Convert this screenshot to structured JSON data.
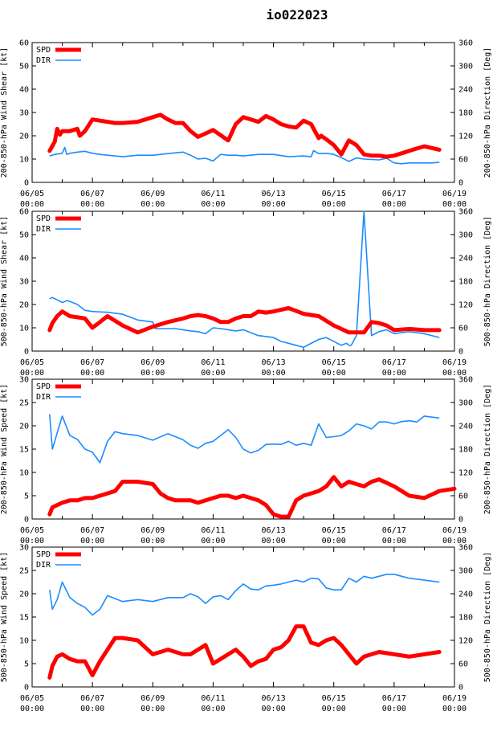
{
  "title": "io022023",
  "colors": {
    "spd": "#ff0000",
    "dir": "#1a8cff",
    "title": "#0000ee",
    "axis": "#000000",
    "grid": "#999999"
  },
  "chart_data": [
    {
      "type": "line",
      "ylabel": "200-850-hPa Wind Shear [kt]",
      "y2label": "200-850-hPa Direction [Deg]",
      "ylim": [
        0,
        60
      ],
      "yticks": [
        0,
        10,
        20,
        30,
        40,
        50,
        60
      ],
      "y2lim": [
        0,
        360
      ],
      "y2ticks": [
        0,
        60,
        120,
        180,
        240,
        300,
        360
      ],
      "xlim": [
        0,
        14
      ],
      "xtick_labels": [
        [
          "06/05",
          "00:00"
        ],
        [
          "06/07",
          "00:00"
        ],
        [
          "06/09",
          "00:00"
        ],
        [
          "06/11",
          "00:00"
        ],
        [
          "06/13",
          "00:00"
        ],
        [
          "06/15",
          "00:00"
        ],
        [
          "06/17",
          "00:00"
        ],
        [
          "06/19",
          "00:00"
        ]
      ],
      "legend": [
        "SPD",
        "DIR"
      ],
      "series": [
        {
          "name": "SPD",
          "x": [
            0.58,
            0.75,
            0.83,
            0.92,
            1.0,
            1.25,
            1.5,
            1.58,
            1.75,
            2.0,
            2.25,
            2.5,
            2.75,
            3.0,
            3.5,
            4.0,
            4.25,
            4.5,
            4.75,
            5.0,
            5.25,
            5.5,
            5.75,
            6.0,
            6.5,
            6.75,
            7.0,
            7.25,
            7.5,
            7.75,
            8.0,
            8.25,
            8.5,
            8.75,
            9.0,
            9.25,
            9.5,
            9.58,
            9.75,
            10.0,
            10.25,
            10.5,
            10.75,
            11.0,
            11.25,
            11.5,
            11.75,
            12.0,
            12.25,
            12.5,
            12.75,
            13.0,
            13.5
          ],
          "values": [
            13.5,
            17.5,
            23,
            20.5,
            22,
            22,
            23,
            20,
            22,
            27,
            26.5,
            26,
            25.5,
            25.5,
            26,
            28,
            29,
            27,
            25.5,
            25.5,
            22,
            19.5,
            21,
            22.5,
            18,
            25,
            28,
            27,
            26,
            28.5,
            27,
            25,
            24,
            23.5,
            26.5,
            25,
            19,
            20,
            18.5,
            16,
            12,
            18,
            16,
            12,
            11.5,
            11.5,
            11,
            11.5,
            12.5,
            13.5,
            14.5,
            15.5,
            14
          ]
        },
        {
          "name": "DIR",
          "x": [
            0.58,
            0.75,
            1.0,
            1.08,
            1.15,
            1.25,
            1.5,
            1.75,
            2.0,
            2.25,
            2.5,
            3.0,
            3.5,
            4.0,
            4.5,
            5.0,
            5.25,
            5.5,
            5.75,
            6.0,
            6.25,
            6.5,
            6.75,
            7.0,
            7.5,
            8.0,
            8.5,
            9.0,
            9.25,
            9.33,
            9.5,
            9.75,
            10.0,
            10.25,
            10.5,
            10.75,
            11.0,
            11.5,
            11.75,
            12.0,
            12.25,
            12.5,
            12.75,
            13.0,
            13.25,
            13.5
          ],
          "values": [
            68,
            72,
            75,
            90,
            72,
            75,
            78,
            80,
            75,
            72,
            70,
            66,
            70,
            70,
            74,
            78,
            70,
            60,
            62,
            55,
            72,
            70,
            70,
            68,
            72,
            72,
            66,
            68,
            66,
            82,
            74,
            75,
            72,
            64,
            54,
            63,
            60,
            58,
            62,
            50,
            48,
            50,
            50,
            50,
            50,
            52
          ]
        }
      ]
    },
    {
      "type": "line",
      "ylabel": "500-850-hPa Wind Shear [kt]",
      "y2label": "500-850-hPa Direction [Deg]",
      "ylim": [
        0,
        60
      ],
      "yticks": [
        0,
        10,
        20,
        30,
        40,
        50,
        60
      ],
      "y2lim": [
        0,
        360
      ],
      "y2ticks": [
        0,
        60,
        120,
        180,
        240,
        300,
        360
      ],
      "xlim": [
        0,
        14
      ],
      "xtick_labels": [
        [
          "06/05",
          "00:00"
        ],
        [
          "06/07",
          "00:00"
        ],
        [
          "06/09",
          "00:00"
        ],
        [
          "06/11",
          "00:00"
        ],
        [
          "06/13",
          "00:00"
        ],
        [
          "06/15",
          "00:00"
        ],
        [
          "06/17",
          "00:00"
        ],
        [
          "06/19",
          "00:00"
        ]
      ],
      "legend": [
        "SPD",
        "DIR"
      ],
      "series": [
        {
          "name": "SPD",
          "x": [
            0.58,
            0.67,
            0.83,
            1.0,
            1.25,
            1.5,
            1.75,
            2.0,
            2.25,
            2.5,
            2.75,
            3.0,
            3.5,
            4.0,
            4.5,
            5.0,
            5.25,
            5.5,
            5.75,
            6.0,
            6.25,
            6.5,
            6.75,
            7.0,
            7.25,
            7.5,
            7.75,
            8.0,
            8.5,
            9.0,
            9.5,
            9.75,
            10.0,
            10.25,
            10.5,
            10.75,
            11.0,
            11.25,
            11.5,
            11.75,
            12.0,
            12.5,
            13.0,
            13.5
          ],
          "values": [
            9,
            12,
            15,
            17,
            15,
            14.5,
            14,
            10,
            12.5,
            15,
            13,
            11,
            8,
            10.5,
            12.5,
            14,
            15,
            15.5,
            15,
            14,
            12.5,
            12.5,
            14,
            15,
            15,
            17,
            16.5,
            17,
            18.5,
            16,
            15,
            13,
            11,
            9.5,
            8,
            8,
            8,
            12.5,
            12,
            11,
            9,
            9.5,
            9,
            9
          ]
        },
        {
          "name": "DIR",
          "x": [
            0.58,
            0.67,
            0.83,
            1.0,
            1.15,
            1.25,
            1.5,
            1.75,
            2.0,
            2.5,
            3.0,
            3.5,
            4.0,
            4.08,
            4.25,
            4.5,
            4.75,
            5.0,
            5.25,
            5.5,
            5.75,
            6.0,
            6.25,
            6.5,
            6.75,
            7.0,
            7.5,
            8.0,
            8.25,
            8.5,
            8.75,
            9.0,
            9.5,
            9.75,
            10.0,
            10.25,
            10.42,
            10.5,
            10.58,
            10.75,
            11.0,
            11.25,
            11.5,
            11.75,
            12.0,
            12.5,
            13.0,
            13.5
          ],
          "values": [
            135,
            138,
            132,
            125,
            130,
            128,
            120,
            105,
            102,
            100,
            95,
            80,
            75,
            58,
            58,
            58,
            58,
            55,
            52,
            50,
            45,
            60,
            58,
            55,
            52,
            55,
            40,
            35,
            25,
            20,
            15,
            10,
            30,
            35,
            25,
            15,
            20,
            15,
            15,
            40,
            360,
            40,
            50,
            55,
            45,
            50,
            45,
            35
          ]
        }
      ]
    },
    {
      "type": "line",
      "ylabel": "200-850-hPa Wind Speed [kt]",
      "y2label": "200-850-hPa Direction [Deg]",
      "ylim": [
        0,
        30
      ],
      "yticks": [
        0,
        5,
        10,
        15,
        20,
        25,
        30
      ],
      "y2lim": [
        0,
        360
      ],
      "y2ticks": [
        0,
        60,
        120,
        180,
        240,
        300,
        360
      ],
      "xlim": [
        0,
        14
      ],
      "xtick_labels": [
        [
          "06/05",
          "00:00"
        ],
        [
          "06/07",
          "00:00"
        ],
        [
          "06/09",
          "00:00"
        ],
        [
          "06/11",
          "00:00"
        ],
        [
          "06/13",
          "00:00"
        ],
        [
          "06/15",
          "00:00"
        ],
        [
          "06/17",
          "00:00"
        ],
        [
          "06/19",
          "00:00"
        ]
      ],
      "legend": [
        "SPD",
        "DIR"
      ],
      "series": [
        {
          "name": "SPD",
          "x": [
            0.58,
            0.67,
            0.83,
            1.0,
            1.25,
            1.5,
            1.75,
            2.0,
            2.25,
            2.5,
            2.75,
            3.0,
            3.25,
            3.5,
            4.0,
            4.25,
            4.5,
            4.75,
            5.0,
            5.25,
            5.5,
            5.75,
            6.0,
            6.25,
            6.5,
            6.75,
            7.0,
            7.25,
            7.5,
            7.75,
            8.0,
            8.25,
            8.5,
            8.75,
            9.0,
            9.25,
            9.5,
            9.75,
            10.0,
            10.25,
            10.5,
            10.75,
            11.0,
            11.25,
            11.5,
            12.0,
            12.5,
            13.0,
            13.5,
            14.0
          ],
          "values": [
            1,
            2.5,
            3,
            3.5,
            4,
            4,
            4.5,
            4.5,
            5,
            5.5,
            6,
            8,
            8,
            8,
            7.5,
            5.5,
            4.5,
            4,
            4,
            4,
            3.5,
            4,
            4.5,
            5,
            5,
            4.5,
            5,
            4.5,
            4,
            3,
            1,
            0.5,
            0.5,
            4,
            5,
            5.5,
            6,
            7,
            9,
            7,
            8,
            7.5,
            7,
            8,
            8.5,
            7,
            5,
            4.5,
            6,
            6.5
          ]
        },
        {
          "name": "DIR",
          "x": [
            0.58,
            0.67,
            0.75,
            0.83,
            1.0,
            1.25,
            1.5,
            1.75,
            2.0,
            2.25,
            2.5,
            2.75,
            3.0,
            3.5,
            4.0,
            4.5,
            5.0,
            5.25,
            5.5,
            5.75,
            6.0,
            6.25,
            6.5,
            6.75,
            7.0,
            7.25,
            7.5,
            7.75,
            8.0,
            8.25,
            8.5,
            8.75,
            9.0,
            9.25,
            9.5,
            9.75,
            10.0,
            10.25,
            10.5,
            10.75,
            11.0,
            11.25,
            11.5,
            11.75,
            12.0,
            12.25,
            12.5,
            12.75,
            13.0,
            13.5
          ],
          "values": [
            270,
            180,
            200,
            222,
            265,
            215,
            205,
            180,
            172,
            145,
            200,
            225,
            220,
            215,
            203,
            220,
            204,
            190,
            182,
            195,
            200,
            215,
            230,
            210,
            180,
            170,
            177,
            192,
            193,
            192,
            200,
            190,
            195,
            190,
            245,
            210,
            212,
            215,
            227,
            245,
            240,
            232,
            250,
            250,
            245,
            251,
            253,
            250,
            265,
            260
          ]
        }
      ]
    },
    {
      "type": "line",
      "ylabel": "500-850-hPa Wind Speed [kt]",
      "y2label": "500-850-hPa Direction [Deg]",
      "ylim": [
        0,
        30
      ],
      "yticks": [
        0,
        5,
        10,
        15,
        20,
        25,
        30
      ],
      "y2lim": [
        0,
        360
      ],
      "y2ticks": [
        0,
        60,
        120,
        180,
        240,
        300,
        360
      ],
      "xlim": [
        0,
        14
      ],
      "xtick_labels": [
        [
          "06/05",
          "00:00"
        ],
        [
          "06/07",
          "00:00"
        ],
        [
          "06/09",
          "00:00"
        ],
        [
          "06/11",
          "00:00"
        ],
        [
          "06/13",
          "00:00"
        ],
        [
          "06/15",
          "00:00"
        ],
        [
          "06/17",
          "00:00"
        ],
        [
          "06/19",
          "00:00"
        ]
      ],
      "legend": [
        "SPD",
        "DIR"
      ],
      "series": [
        {
          "name": "SPD",
          "x": [
            0.58,
            0.67,
            0.83,
            1.0,
            1.25,
            1.5,
            1.75,
            2.0,
            2.25,
            2.5,
            2.75,
            3.0,
            3.5,
            4.0,
            4.5,
            5.0,
            5.25,
            5.5,
            5.75,
            6.0,
            6.25,
            6.5,
            6.75,
            7.0,
            7.25,
            7.5,
            7.75,
            8.0,
            8.25,
            8.5,
            8.75,
            9.0,
            9.25,
            9.5,
            9.75,
            10.0,
            10.25,
            10.5,
            10.75,
            11.0,
            11.25,
            11.5,
            12.0,
            12.5,
            13.0,
            13.5
          ],
          "values": [
            2,
            4.5,
            6.5,
            7,
            6,
            5.5,
            5.5,
            2.5,
            5.5,
            8,
            10.5,
            10.5,
            10,
            7,
            8,
            7,
            7,
            8,
            9,
            5,
            6,
            7,
            8,
            6.5,
            4.5,
            5.5,
            6,
            8,
            8.5,
            10,
            13,
            13,
            9.5,
            9,
            10,
            10.5,
            9,
            7,
            5,
            6.5,
            7,
            7.5,
            7,
            6.5,
            7,
            7.5
          ]
        },
        {
          "name": "DIR",
          "x": [
            0.58,
            0.67,
            0.83,
            1.0,
            1.25,
            1.5,
            1.75,
            2.0,
            2.25,
            2.5,
            3.0,
            3.5,
            4.0,
            4.5,
            5.0,
            5.25,
            5.5,
            5.75,
            6.0,
            6.25,
            6.5,
            6.75,
            7.0,
            7.25,
            7.5,
            7.75,
            8.0,
            8.25,
            8.5,
            8.75,
            9.0,
            9.25,
            9.5,
            9.75,
            10.0,
            10.25,
            10.5,
            10.75,
            11.0,
            11.25,
            11.5,
            11.75,
            12.0,
            12.25,
            12.5,
            13.0,
            13.5
          ],
          "values": [
            250,
            200,
            225,
            270,
            230,
            215,
            205,
            185,
            200,
            235,
            220,
            225,
            220,
            230,
            230,
            240,
            232,
            215,
            232,
            235,
            225,
            248,
            265,
            252,
            250,
            260,
            262,
            265,
            270,
            275,
            270,
            280,
            278,
            255,
            250,
            250,
            280,
            270,
            285,
            280,
            285,
            290,
            290,
            285,
            280,
            275,
            270
          ]
        }
      ]
    }
  ]
}
